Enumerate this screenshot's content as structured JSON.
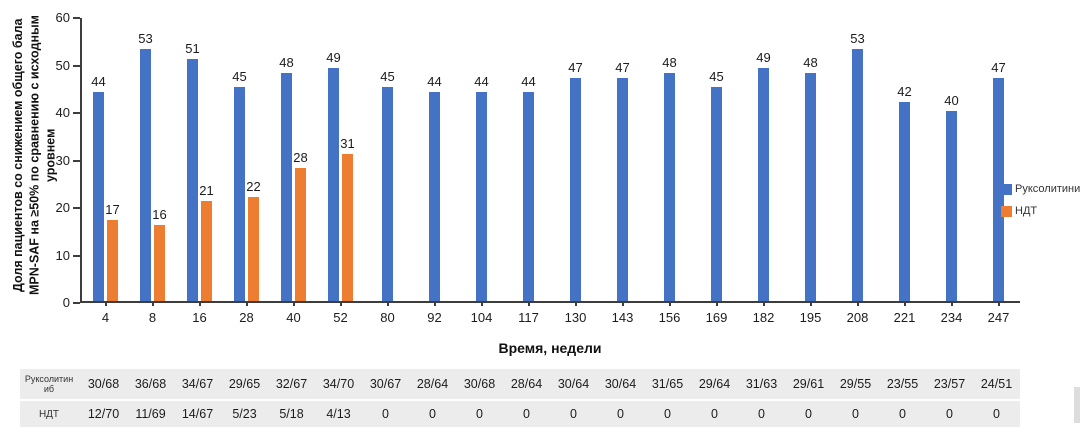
{
  "colors": {
    "bar_blue": "#4472C4",
    "bar_orange": "#ED7D31",
    "axis": "#3D3D3D",
    "table_background": "#ECECEC"
  },
  "chart_data": {
    "type": "bar",
    "title": "",
    "x_title": "Время, недели",
    "y_title": "Доля пациентов со снижением общего бала MPN-SAF на ≥50% по сравнению с исходным уровнем",
    "ylim": [
      0,
      60
    ],
    "y_ticks": [
      0,
      10,
      20,
      30,
      40,
      50,
      60
    ],
    "grid": false,
    "legend_position": "right",
    "categories": [
      "4",
      "8",
      "16",
      "28",
      "40",
      "52",
      "80",
      "92",
      "104",
      "117",
      "130",
      "143",
      "156",
      "169",
      "182",
      "195",
      "208",
      "221",
      "234",
      "247"
    ],
    "series": [
      {
        "name": "Руксолитиниб",
        "color": "#4472C4",
        "values": [
          44,
          53,
          51,
          45,
          48,
          49,
          45,
          44,
          44,
          44,
          47,
          47,
          48,
          45,
          49,
          48,
          53,
          42,
          40,
          47
        ]
      },
      {
        "name": "НДТ",
        "color": "#ED7D31",
        "values": [
          17,
          16,
          21,
          22,
          28,
          31,
          null,
          null,
          null,
          null,
          null,
          null,
          null,
          null,
          null,
          null,
          null,
          null,
          null,
          null
        ]
      }
    ]
  },
  "table": {
    "rows": [
      {
        "label": "Руксолитиниб",
        "values": [
          "30/68",
          "36/68",
          "34/67",
          "29/65",
          "32/67",
          "34/70",
          "30/67",
          "28/64",
          "30/68",
          "28/64",
          "30/64",
          "30/64",
          "31/65",
          "29/64",
          "31/63",
          "29/61",
          "29/55",
          "23/55",
          "23/57",
          "24/51"
        ]
      },
      {
        "label": "НДТ",
        "values": [
          "12/70",
          "11/69",
          "14/67",
          "5/23",
          "5/18",
          "4/13",
          "0",
          "0",
          "0",
          "0",
          "0",
          "0",
          "0",
          "0",
          "0",
          "0",
          "0",
          "0",
          "0",
          "0"
        ]
      }
    ]
  }
}
